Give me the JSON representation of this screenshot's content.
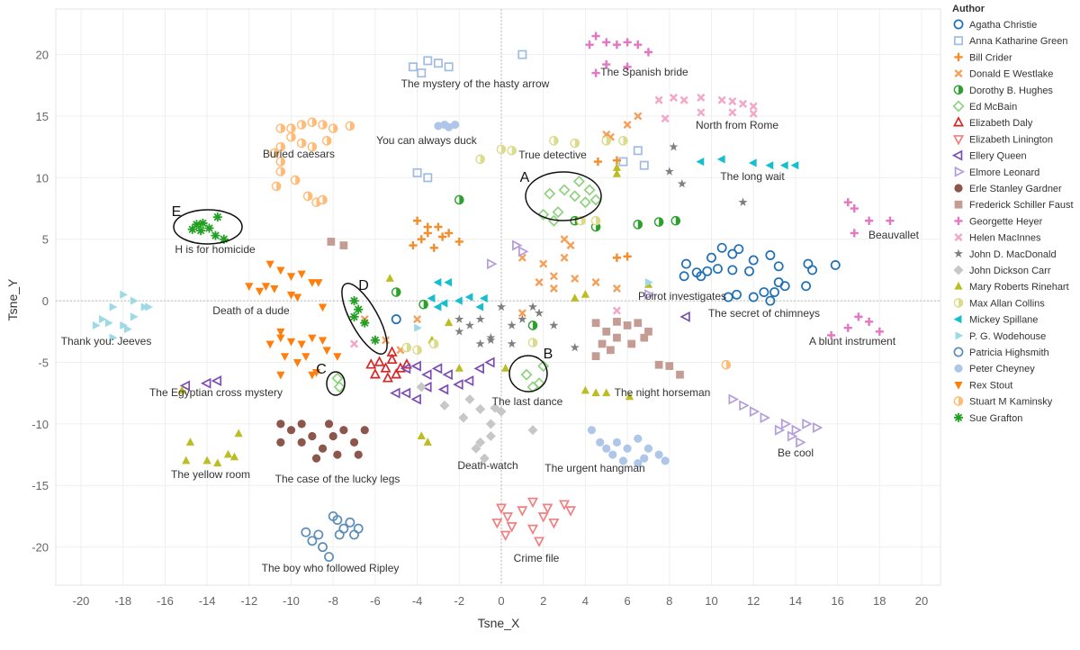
{
  "chart_data": {
    "type": "scatter",
    "x_label": "Tsne_X",
    "y_label": "Tsne_Y",
    "legend_title": "Author",
    "legend_position": "right",
    "grid": true,
    "xlim": [
      -21.2,
      20.9
    ],
    "ylim": [
      -23.1,
      23.7
    ],
    "xticks": [
      -20,
      -18,
      -16,
      -14,
      -12,
      -10,
      -8,
      -6,
      -4,
      -2,
      0,
      2,
      4,
      6,
      8,
      10,
      12,
      14,
      16,
      18,
      20
    ],
    "yticks": [
      -20,
      -15,
      -10,
      -5,
      0,
      5,
      10,
      15,
      20
    ],
    "annotations": [
      "The mystery of the hasty arrow",
      "The Spanish bride",
      "North from Rome",
      "Buried caesars",
      "You can always duck",
      "True detective",
      "The long wait",
      "Beauvallet",
      "H is for homicide",
      "Death of a dude",
      "Poirot investigates",
      "The secret of chimneys",
      "Thank you: Jeeves",
      "A blunt instrument",
      "The Egyptian cross mystery",
      "The night horseman",
      "The last dance",
      "Be cool",
      "Death-watch",
      "The urgent hangman",
      "The yellow room",
      "The case of the lucky legs",
      "The boy who followed Ripley",
      "Crime file"
    ],
    "highlight_labels": [
      "A",
      "B",
      "C",
      "D",
      "E"
    ],
    "series": [
      {
        "name": "Agatha Christie",
        "color": "#1f6fb5",
        "marker": "circle-open",
        "x": [
          8.8,
          9.5,
          10,
          10.5,
          11,
          11.3,
          12,
          12.8,
          10.3,
          11,
          11.8,
          13.2,
          14.6,
          15.9,
          14.8,
          8.7,
          9.3,
          12.5,
          13,
          13.5,
          13.2,
          14.5,
          10.8,
          12,
          12.8,
          11.2,
          9.8,
          -5
        ],
        "y": [
          3,
          2,
          3.5,
          4.3,
          3.8,
          4.2,
          3.3,
          3.7,
          2.6,
          2.5,
          2.4,
          2.8,
          3,
          2.9,
          2.5,
          2,
          2.3,
          0.7,
          0.7,
          1.2,
          1.5,
          1.2,
          0.3,
          0.3,
          0,
          0.5,
          2.4,
          -1.5
        ]
      },
      {
        "name": "Anna Katharine Green",
        "color": "#a0bde0",
        "marker": "square-open",
        "x": [
          -4.2,
          -3.5,
          -3.8,
          -3,
          -2.5,
          1,
          -4,
          -3.5,
          6.5,
          5.8,
          6.8
        ],
        "y": [
          19,
          19.5,
          18.5,
          19.3,
          19,
          20,
          10.4,
          10,
          12.2,
          11.3,
          11
        ]
      },
      {
        "name": "Bill Crider",
        "color": "#f28e2b",
        "marker": "plus",
        "x": [
          -4,
          -3.5,
          -3,
          -2.5,
          -2,
          -3.8,
          -4.2,
          -3.2,
          -2.8,
          -3.5,
          4.6,
          5.5,
          5.5,
          6
        ],
        "y": [
          6.5,
          6,
          6,
          5.5,
          4.8,
          5,
          4.5,
          4.3,
          5.2,
          5.5,
          11.3,
          11.4,
          3.5,
          3.6
        ]
      },
      {
        "name": "Donald E Westlake",
        "color": "#f5a05a",
        "marker": "cross",
        "x": [
          -6.5,
          -5.5,
          -4.8,
          -4,
          1,
          2,
          3,
          2.5,
          3.5,
          1.8,
          4.5,
          5.5,
          3,
          5,
          6,
          6.5,
          5.2,
          3.3,
          2.5,
          1
        ],
        "y": [
          -1.5,
          -3.2,
          -4,
          -1.5,
          3.5,
          3,
          3.5,
          2,
          1.8,
          1.5,
          1.5,
          1,
          5,
          13.5,
          14.3,
          15,
          13.3,
          4.5,
          1,
          -1
        ]
      },
      {
        "name": "Dorothy B. Hughes",
        "color": "#2ca02c",
        "marker": "half-circle",
        "x": [
          -2,
          -5,
          -3.7,
          4.5,
          6.5,
          7.5,
          8.3,
          3.5,
          1.5
        ],
        "y": [
          8.2,
          0.7,
          -0.3,
          6,
          6.2,
          6.4,
          6.5,
          6.5,
          -2
        ]
      },
      {
        "name": "Ed McBain",
        "color": "#8fd17f",
        "marker": "diamond-open",
        "x": [
          2,
          2.5,
          2.3,
          3,
          3.7,
          4.2,
          4.5,
          2.7,
          3.5,
          4,
          1.2,
          1.5,
          2,
          1.8,
          -7.8,
          -7.7
        ],
        "y": [
          7,
          6.5,
          8.7,
          9,
          9.7,
          9,
          8.2,
          7.2,
          8.5,
          8,
          -6,
          -7,
          -5.3,
          -6.7,
          -6.3,
          -7
        ]
      },
      {
        "name": "Elizabeth Daly",
        "color": "#d62728",
        "marker": "triangle-open",
        "x": [
          -6,
          -5.8,
          -5.5,
          -5.2,
          -4.8,
          -5,
          -5.4,
          -6.2,
          -4.5,
          -5.2
        ],
        "y": [
          -6,
          -5,
          -5.5,
          -4.8,
          -5.5,
          -6,
          -6.3,
          -5.2,
          -5.2,
          -4.2
        ]
      },
      {
        "name": "Elizabeth Linington",
        "color": "#f08080",
        "marker": "triangle-down-open",
        "x": [
          0,
          0.3,
          -0.2,
          0.5,
          1,
          1.5,
          2,
          2.5,
          3,
          3.3,
          1.8,
          1.5,
          0.2,
          2.2
        ],
        "y": [
          -16.8,
          -17.5,
          -18,
          -18.3,
          -17,
          -16.3,
          -17.5,
          -18,
          -16.5,
          -17,
          -19.5,
          -18.5,
          -19,
          -16.8
        ]
      },
      {
        "name": "Ellery Queen",
        "color": "#7b4db3",
        "marker": "triangle-left-open",
        "x": [
          -15,
          -14,
          -13.5,
          -4.5,
          -4,
          -3.5,
          -3,
          -2.5,
          -2,
          -1.5,
          -1,
          -0.5,
          -4,
          -4.5,
          -3.5,
          -5,
          -2.7,
          8.8
        ],
        "y": [
          -6.9,
          -6.7,
          -6.5,
          -5.5,
          -5.3,
          -6,
          -5.5,
          -6,
          -6.8,
          -6.5,
          -5.5,
          -5,
          -8,
          -7.5,
          -7,
          -7.5,
          -7.2,
          -1.3
        ]
      },
      {
        "name": "Elmore Leonard",
        "color": "#b39ddb",
        "marker": "triangle-right-open",
        "x": [
          0.7,
          -0.5,
          1,
          7,
          11,
          11.5,
          12,
          12.5,
          13.5,
          14,
          14.5,
          15,
          13.8,
          14.2,
          13.2
        ],
        "y": [
          4.5,
          3,
          4,
          0.5,
          -8,
          -8.5,
          -9,
          -9.5,
          -10,
          -10.5,
          -10,
          -10.3,
          -11,
          -11.5,
          -10.5
        ]
      },
      {
        "name": "Erle Stanley Gardner",
        "color": "#8c564b",
        "marker": "circle",
        "x": [
          -10.5,
          -10,
          -9.5,
          -10.5,
          -9.5,
          -9,
          -8.5,
          -8,
          -7.8,
          -7.5,
          -7,
          -6.5,
          -8.8,
          -6.8,
          -8.2
        ],
        "y": [
          -10,
          -10.5,
          -10,
          -11.5,
          -11.5,
          -11,
          -12,
          -11,
          -12.5,
          -10.5,
          -11.5,
          -10.5,
          -12.8,
          -12.5,
          -10
        ]
      },
      {
        "name": "Frederick Schiller Faust",
        "color": "#c49c94",
        "marker": "square",
        "x": [
          -8.1,
          -7.5,
          4.5,
          5,
          5.5,
          6,
          6.5,
          4.8,
          5.5,
          6.2,
          4.5,
          7,
          6.8,
          7.5,
          8,
          8.5,
          5.2
        ],
        "y": [
          4.8,
          4.5,
          -1.8,
          -2.5,
          -1.7,
          -2,
          -1.8,
          -3.5,
          -3,
          -3.5,
          -4.5,
          -2.5,
          -3,
          -5.2,
          -5.3,
          -6,
          -4
        ]
      },
      {
        "name": "Georgette Heyer",
        "color": "#e377c2",
        "marker": "plus",
        "x": [
          4.5,
          5,
          5.5,
          6,
          6.5,
          7,
          4.2,
          4.5,
          5,
          6,
          16.5,
          16.8,
          17.5,
          18.5,
          16.8,
          17,
          17.5,
          16.5,
          18,
          15.7
        ],
        "y": [
          21.5,
          21,
          20.8,
          21,
          20.8,
          20.2,
          20.8,
          18.5,
          19.2,
          19,
          8,
          7.5,
          6.5,
          6.5,
          5.5,
          -1.3,
          -1.7,
          -2.2,
          -2.5,
          -2.8
        ]
      },
      {
        "name": "Helen MacInnes",
        "color": "#f4a6c6",
        "marker": "cross",
        "x": [
          7.5,
          8.2,
          8.7,
          9.5,
          10.5,
          11,
          11.5,
          12,
          11,
          9.5,
          12,
          7.8,
          -7,
          5.5
        ],
        "y": [
          16.3,
          16.5,
          16.3,
          16.5,
          16.3,
          16.2,
          16,
          15.8,
          15.3,
          15.3,
          15.2,
          14.8,
          -3.5,
          -0.8
        ]
      },
      {
        "name": "John D. MacDonald",
        "color": "#7f7f7f",
        "marker": "star",
        "x": [
          -2,
          -1.5,
          -1,
          -0.5,
          0,
          0.5,
          1,
          1.5,
          -1,
          -0.5,
          0.5,
          2.5,
          3.5,
          -2,
          1.8,
          8.2,
          8,
          8.6,
          11.5
        ],
        "y": [
          -2.5,
          -2,
          -1.5,
          -3,
          -0.5,
          -2,
          -1.5,
          -0.5,
          -3.5,
          -3.2,
          -3.5,
          -2,
          -3.8,
          -1.5,
          -1,
          12.5,
          10.5,
          9.5,
          8
        ]
      },
      {
        "name": "John Dickson Carr",
        "color": "#c7c7c7",
        "marker": "diamond",
        "x": [
          -3.8,
          -2.7,
          -1.5,
          -1.8,
          -1,
          -0.5,
          0,
          -1,
          -0.5,
          -1.2,
          -0.8,
          1.5,
          -0.3
        ],
        "y": [
          -7,
          -8.5,
          -8,
          -9.5,
          -8.8,
          -10,
          -9,
          -11.5,
          -11,
          -12,
          -12.8,
          -10.5,
          -8.7
        ]
      },
      {
        "name": "Mary Roberts Rinehart",
        "color": "#bcbd22",
        "marker": "triangle",
        "x": [
          -15.2,
          -14.8,
          -15,
          -14,
          -13.5,
          -12.7,
          -13,
          -12.5,
          -5.3,
          -3.3,
          -2.5,
          -2,
          -3.8,
          -3.5,
          4,
          3.5,
          4,
          4.5,
          5,
          6.1,
          5.5,
          5.5,
          7,
          0.2
        ],
        "y": [
          -7.3,
          -11.5,
          -13,
          -13,
          -13.2,
          -12.7,
          -12.5,
          -10.8,
          1.8,
          -3.2,
          -1.8,
          -5.5,
          -11,
          -11.5,
          0.5,
          0.2,
          -7.3,
          -7.5,
          -7.5,
          -7.8,
          10.3,
          10.8,
          1.3,
          -5.5
        ]
      },
      {
        "name": "Max Allan Collins",
        "color": "#dbdb8d",
        "marker": "half-circle",
        "x": [
          -1,
          0,
          0.5,
          2.5,
          3.5,
          5,
          5.8,
          3.8,
          4.5,
          -4.5,
          -4,
          -3.2,
          1.5
        ],
        "y": [
          11.5,
          12.3,
          12.2,
          13,
          12.8,
          13,
          13,
          6.5,
          6.5,
          -3.8,
          -4,
          -3.5,
          -3.4
        ]
      },
      {
        "name": "Mickey Spillane",
        "color": "#17becf",
        "marker": "triangle-left",
        "x": [
          -3,
          -2.5,
          -3.3,
          -2.7,
          -2,
          -1.5,
          -0.8,
          -1,
          -3,
          9.5,
          10.5,
          12,
          12.8,
          13.5,
          14
        ],
        "y": [
          1.5,
          1.5,
          0.2,
          -0.2,
          0,
          0.3,
          0.2,
          -0.5,
          -0.5,
          11.3,
          11.5,
          11.2,
          11,
          11,
          11
        ]
      },
      {
        "name": "P. G. Wodehouse",
        "color": "#9edae5",
        "marker": "triangle-right",
        "x": [
          -18,
          -18.5,
          -17.5,
          -17,
          -16.8,
          -19,
          -19.3,
          -18.7,
          -18,
          -17.5,
          -17.8,
          -18.5,
          -4,
          7
        ],
        "y": [
          0.5,
          -0.5,
          0,
          -0.5,
          -0.5,
          -1.5,
          -2,
          -1.8,
          -2,
          -1.3,
          -2.3,
          -3,
          -2.2,
          1.5
        ]
      },
      {
        "name": "Patricia Highsmith",
        "color": "#5b8db8",
        "marker": "circle-open",
        "x": [
          -9,
          -8.7,
          -8,
          -7.8,
          -7.5,
          -7,
          -7.2,
          -8.5,
          -7.7,
          -8.2,
          -9.3,
          -6.8
        ],
        "y": [
          -19.5,
          -19,
          -17.5,
          -17.8,
          -18.5,
          -19,
          -18,
          -20,
          -19,
          -20.8,
          -18.8,
          -18.5
        ]
      },
      {
        "name": "Peter Cheyney",
        "color": "#aec7e8",
        "marker": "circle",
        "x": [
          -3,
          -2.7,
          -2.2,
          -2.5,
          4.3,
          4.7,
          5,
          5.5,
          6,
          6.5,
          7,
          7.5,
          7.8,
          6.5,
          5.8,
          6.8,
          5.3
        ],
        "y": [
          14.2,
          14.3,
          14.3,
          14.1,
          -10.5,
          -11.5,
          -12,
          -11.5,
          -12,
          -11.2,
          -12,
          -12.5,
          -13,
          -13.2,
          -13,
          -12.8,
          -12.5
        ]
      },
      {
        "name": "Rex Stout",
        "color": "#ff7f0e",
        "marker": "triangle-down",
        "x": [
          -12,
          -11.5,
          -11,
          -10.5,
          -10,
          -9.5,
          -9,
          -10.8,
          -10,
          -9.7,
          -8.5,
          -8.7,
          -10.5,
          -10,
          -9.5,
          -9,
          -8.5,
          -10.3,
          -9.7,
          -9.3,
          -8.3,
          -10.5,
          -9,
          -11,
          -10.5,
          -8.8,
          -11.2,
          -7.8
        ],
        "y": [
          1.2,
          0.8,
          3,
          2.5,
          2,
          2.2,
          1.5,
          1,
          0.5,
          0.3,
          -0.5,
          1.5,
          -2.5,
          -3.3,
          -3.5,
          -3,
          -3.2,
          -4.5,
          -5,
          -4.5,
          -4,
          -6,
          -6,
          -3.5,
          -3,
          -5.8,
          1.2,
          -4.5
        ]
      },
      {
        "name": "Stuart M Kaminsky",
        "color": "#ffbb78",
        "marker": "half-circle",
        "x": [
          -10.5,
          -10,
          -9.5,
          -9,
          -8.5,
          -8,
          -7.2,
          -10,
          -9.5,
          -9,
          -8.3,
          -10.5,
          -10.8,
          -10.5,
          -10.5,
          -9.2,
          -8.8,
          -8.5,
          -10.7,
          10.7,
          -9.8
        ],
        "y": [
          14,
          14,
          14.3,
          14.5,
          14.3,
          14,
          14.2,
          13.3,
          12.8,
          12.5,
          13,
          12.5,
          12,
          11.3,
          10.5,
          8.5,
          8,
          8.2,
          9.3,
          -5.2,
          9.8
        ]
      },
      {
        "name": "Sue Grafton",
        "color": "#22a022",
        "marker": "asterisk",
        "x": [
          -14.7,
          -14.5,
          -14.2,
          -13.9,
          -13.5,
          -13.6,
          -13.2,
          -14.3,
          -7,
          -6.8,
          -6.5,
          -6,
          -7
        ],
        "y": [
          5.8,
          6.2,
          6.3,
          5.9,
          6.8,
          5.3,
          5,
          5.7,
          0,
          -0.7,
          -1.8,
          -3.2,
          -1.3
        ]
      }
    ]
  }
}
